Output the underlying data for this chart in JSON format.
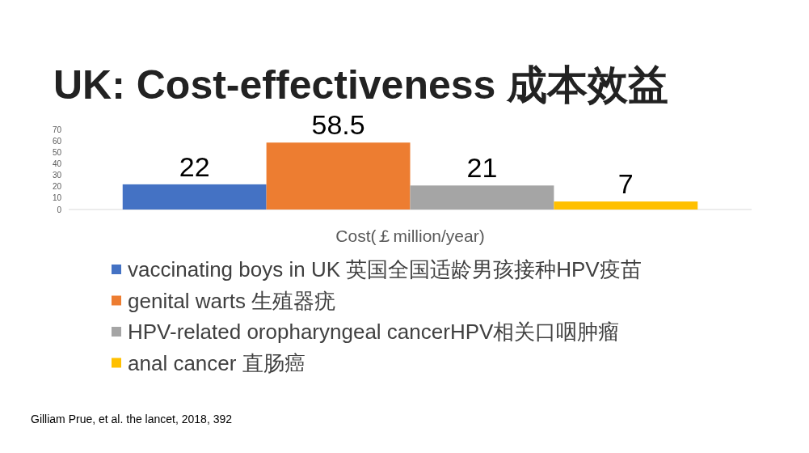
{
  "chart_data": {
    "type": "bar",
    "title": "UK: Cost-effectiveness 成本效益",
    "xlabel": "Cost(￡million/year)",
    "categories": [
      null
    ],
    "series": [
      {
        "name": "vaccinating boys in UK 英国全国适龄男孩接种HPV疫苗",
        "color": "#4472c4",
        "values": [
          22
        ]
      },
      {
        "name": "genital warts 生殖器疣",
        "color": "#ed7d31",
        "values": [
          58.5
        ]
      },
      {
        "name": "HPV-related oropharyngeal cancerHPV相关口咽肿瘤",
        "color": "#a5a5a5",
        "values": [
          21
        ]
      },
      {
        "name": "anal cancer 直肠癌",
        "color": "#ffc000",
        "values": [
          7
        ]
      }
    ],
    "ylim": [
      0,
      70
    ],
    "yticks": [
      0,
      10,
      20,
      30,
      40,
      50,
      60,
      70
    ],
    "data_labels": true,
    "legend": "bottom",
    "annotations": [
      "Gilliam Prue, et al. the lancet, 2018, 392"
    ]
  }
}
